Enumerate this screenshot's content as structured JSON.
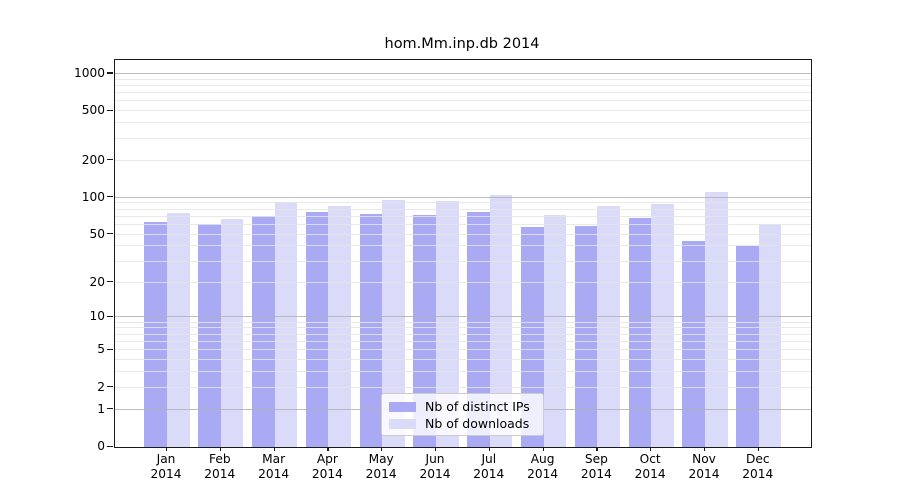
{
  "title": "hom.Mm.inp.db 2014",
  "chart_data": {
    "type": "bar",
    "title": "hom.Mm.inp.db 2014",
    "categories": [
      "Jan",
      "Feb",
      "Mar",
      "Apr",
      "May",
      "Jun",
      "Jul",
      "Aug",
      "Sep",
      "Oct",
      "Nov",
      "Dec"
    ],
    "year": "2014",
    "series": [
      {
        "name": "Nb of distinct IPs",
        "color": "#a9a9f4",
        "values": [
          63,
          61,
          71,
          76,
          74,
          72,
          76,
          58,
          59,
          68,
          44,
          40
        ]
      },
      {
        "name": "Nb of downloads",
        "color": "#dadaf9",
        "values": [
          75,
          67,
          92,
          85,
          95,
          94,
          105,
          72,
          86,
          89,
          111,
          61
        ]
      }
    ],
    "xlabel": "",
    "ylabel": "",
    "yticks": [
      0,
      1,
      2,
      5,
      10,
      20,
      50,
      100,
      200,
      500,
      1000
    ],
    "ylim": [
      0,
      1291
    ],
    "yscale": "log10(1+v)",
    "grid": "horizontal, minor log decades, drawn over bars",
    "legend_position": "bottom-center-inside",
    "colors": {
      "minor_grid": "#e5e5e5",
      "major_grid": "#b2b2b2",
      "axis": "#1a1a1a",
      "background": "#ffffff"
    }
  }
}
